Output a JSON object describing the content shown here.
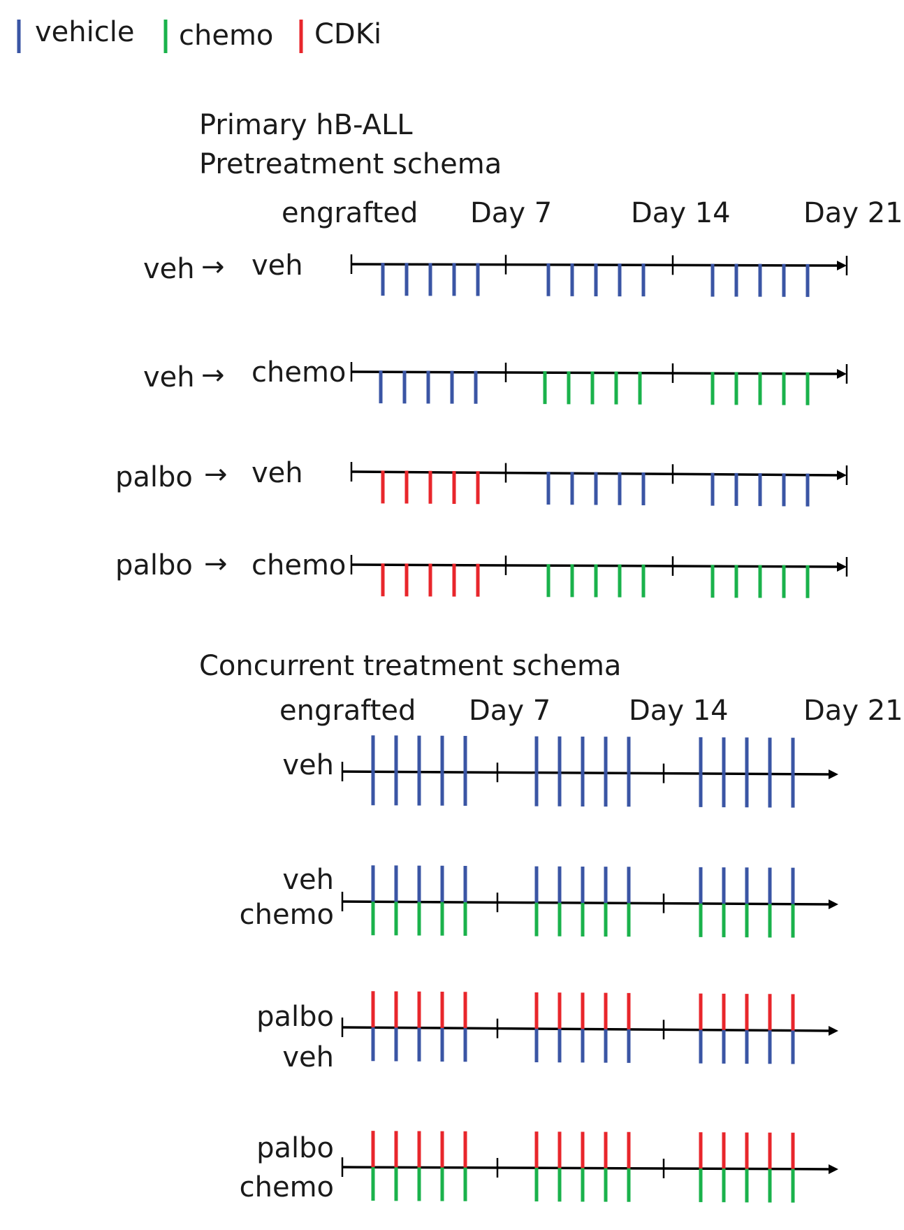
{
  "legend": [
    {
      "label": "vehicle",
      "color": "#3a55a4"
    },
    {
      "label": "chemo",
      "color": "#1ab24b"
    },
    {
      "label": "CDKi",
      "color": "#e8262b"
    }
  ],
  "colors": {
    "vehicle": "#3a55a4",
    "chemo": "#1ab24b",
    "cdki": "#e8262b",
    "axis": "#000000"
  },
  "pretreatment": {
    "title_line1": "Primary hB-ALL",
    "title_line2": "Pretreatment schema",
    "day_labels": [
      "engrafted",
      "Day 7",
      "Day 14",
      "Day 21"
    ],
    "arrow_glyph": "→",
    "rows": [
      {
        "pre": "veh",
        "post": "veh",
        "weeks": [
          "vehicle",
          "vehicle",
          "vehicle"
        ]
      },
      {
        "pre": "veh",
        "post": "chemo",
        "weeks": [
          "vehicle",
          "chemo",
          "chemo"
        ]
      },
      {
        "pre": "palbo",
        "post": "veh",
        "weeks": [
          "cdki",
          "vehicle",
          "vehicle"
        ]
      },
      {
        "pre": "palbo",
        "post": "chemo",
        "weeks": [
          "cdki",
          "chemo",
          "chemo"
        ]
      }
    ]
  },
  "concurrent": {
    "title": "Concurrent treatment schema",
    "day_labels": [
      "engrafted",
      "Day 7",
      "Day 14",
      "Day 21"
    ],
    "rows": [
      {
        "labels": [
          "veh"
        ],
        "top": "vehicle",
        "bottom": "vehicle"
      },
      {
        "labels": [
          "veh",
          "chemo"
        ],
        "top": "vehicle",
        "bottom": "chemo"
      },
      {
        "labels": [
          "palbo",
          "veh"
        ],
        "top": "cdki",
        "bottom": "vehicle"
      },
      {
        "labels": [
          "palbo",
          "chemo"
        ],
        "top": "cdki",
        "bottom": "chemo"
      }
    ]
  }
}
